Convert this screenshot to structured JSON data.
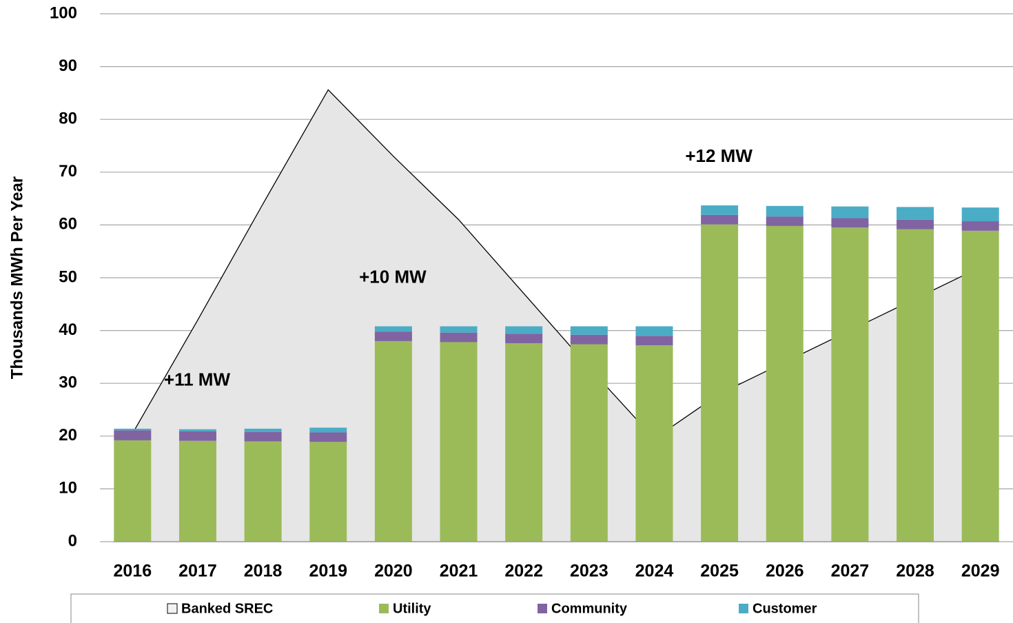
{
  "chart_data": {
    "type": "bar",
    "y_axis_label": "Thousands MWh Per Year",
    "categories": [
      "2016",
      "2017",
      "2018",
      "2019",
      "2020",
      "2021",
      "2022",
      "2023",
      "2024",
      "2025",
      "2026",
      "2027",
      "2028",
      "2029"
    ],
    "series": [
      {
        "name": "Banked SREC",
        "type": "area",
        "color": "#e6e6e6",
        "values": [
          20.5,
          42,
          64,
          85.6,
          73,
          61,
          47,
          33,
          19.5,
          28,
          34,
          40,
          46,
          52
        ]
      },
      {
        "name": "Utility",
        "type": "bar",
        "color": "#9bbb59",
        "values": [
          19.2,
          19.1,
          19.0,
          18.9,
          38.0,
          37.8,
          37.6,
          37.4,
          37.2,
          60.1,
          59.8,
          59.5,
          59.2,
          58.9
        ]
      },
      {
        "name": "Community",
        "type": "bar",
        "color": "#8064a2",
        "values": [
          1.9,
          1.8,
          1.8,
          1.8,
          1.8,
          1.8,
          1.8,
          1.8,
          1.8,
          1.8,
          1.8,
          1.8,
          1.8,
          1.8
        ]
      },
      {
        "name": "Customer",
        "type": "bar",
        "color": "#4bacc6",
        "values": [
          0.3,
          0.4,
          0.6,
          0.9,
          1.0,
          1.2,
          1.4,
          1.6,
          1.8,
          1.8,
          2.0,
          2.2,
          2.4,
          2.6
        ]
      }
    ],
    "annotations": [
      {
        "text": "+11 MW",
        "category": "2017"
      },
      {
        "text": "+10 MW",
        "category": "2020"
      },
      {
        "text": "+12 MW",
        "category": "2025"
      }
    ],
    "ylim": [
      0,
      100
    ],
    "yticks": [
      0,
      10,
      20,
      30,
      40,
      50,
      60,
      70,
      80,
      90,
      100
    ],
    "grid": true,
    "legend": "bottom"
  }
}
